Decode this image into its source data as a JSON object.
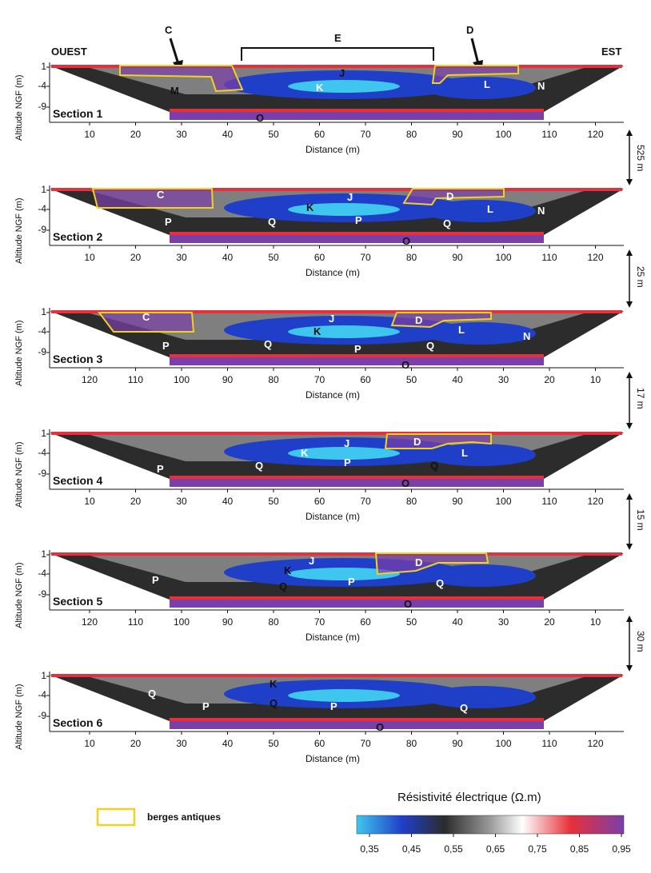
{
  "header": {
    "west": "OUEST",
    "east": "EST",
    "arrow_c": "C",
    "arrow_d": "D",
    "bracket_e": "E"
  },
  "axis": {
    "y_title": "Altitude NGF (m)",
    "y_ticks": [
      "1",
      "-4",
      "-9"
    ],
    "x_title": "Distance (m)"
  },
  "sections": [
    {
      "name": "Section 1",
      "x_ticks": [
        "10",
        "20",
        "30",
        "40",
        "50",
        "60",
        "70",
        "80",
        "90",
        "100",
        "110",
        "120"
      ],
      "zones": [
        {
          "t": "M",
          "c": "k"
        },
        {
          "t": "K",
          "c": "w"
        },
        {
          "t": "J",
          "c": "k"
        },
        {
          "t": "L",
          "c": "w"
        },
        {
          "t": "N",
          "c": "w"
        },
        {
          "t": "O",
          "c": "k"
        }
      ]
    },
    {
      "name": "Section 2",
      "x_ticks": [
        "10",
        "20",
        "30",
        "40",
        "50",
        "60",
        "70",
        "80",
        "90",
        "100",
        "110",
        "120"
      ],
      "zones": [
        {
          "t": "C",
          "c": "w"
        },
        {
          "t": "P",
          "c": "w"
        },
        {
          "t": "K",
          "c": "k"
        },
        {
          "t": "J",
          "c": "w"
        },
        {
          "t": "Q",
          "c": "w"
        },
        {
          "t": "P",
          "c": "w"
        },
        {
          "t": "D",
          "c": "w"
        },
        {
          "t": "Q",
          "c": "w"
        },
        {
          "t": "L",
          "c": "w"
        },
        {
          "t": "N",
          "c": "w"
        },
        {
          "t": "O",
          "c": "k"
        }
      ]
    },
    {
      "name": "Section 3",
      "x_ticks": [
        "120",
        "110",
        "100",
        "90",
        "80",
        "70",
        "60",
        "50",
        "40",
        "30",
        "20",
        "10"
      ],
      "zones": [
        {
          "t": "C",
          "c": "w"
        },
        {
          "t": "P",
          "c": "w"
        },
        {
          "t": "Q",
          "c": "w"
        },
        {
          "t": "K",
          "c": "k"
        },
        {
          "t": "J",
          "c": "w"
        },
        {
          "t": "P",
          "c": "w"
        },
        {
          "t": "D",
          "c": "w"
        },
        {
          "t": "L",
          "c": "w"
        },
        {
          "t": "Q",
          "c": "w"
        },
        {
          "t": "N",
          "c": "w"
        },
        {
          "t": "O",
          "c": "k"
        }
      ]
    },
    {
      "name": "Section 4",
      "x_ticks": [
        "10",
        "20",
        "30",
        "40",
        "50",
        "60",
        "70",
        "80",
        "90",
        "100",
        "110",
        "120"
      ],
      "zones": [
        {
          "t": "P",
          "c": "w"
        },
        {
          "t": "Q",
          "c": "w"
        },
        {
          "t": "K",
          "c": "w"
        },
        {
          "t": "J",
          "c": "w"
        },
        {
          "t": "P",
          "c": "w"
        },
        {
          "t": "D",
          "c": "w"
        },
        {
          "t": "L",
          "c": "w"
        },
        {
          "t": "Q",
          "c": "k"
        },
        {
          "t": "O",
          "c": "k"
        }
      ]
    },
    {
      "name": "Section 5",
      "x_ticks": [
        "120",
        "110",
        "100",
        "90",
        "80",
        "70",
        "60",
        "50",
        "40",
        "30",
        "20",
        "10"
      ],
      "zones": [
        {
          "t": "P",
          "c": "w"
        },
        {
          "t": "K",
          "c": "k"
        },
        {
          "t": "J",
          "c": "w"
        },
        {
          "t": "Q",
          "c": "k"
        },
        {
          "t": "P",
          "c": "w"
        },
        {
          "t": "D",
          "c": "w"
        },
        {
          "t": "Q",
          "c": "w"
        },
        {
          "t": "O",
          "c": "k"
        }
      ]
    },
    {
      "name": "Section 6",
      "x_ticks": [
        "10",
        "20",
        "30",
        "40",
        "50",
        "60",
        "70",
        "80",
        "90",
        "100",
        "110",
        "120"
      ],
      "zones": [
        {
          "t": "Q",
          "c": "w"
        },
        {
          "t": "P",
          "c": "w"
        },
        {
          "t": "K",
          "c": "k"
        },
        {
          "t": "Q",
          "c": "k"
        },
        {
          "t": "P",
          "c": "w"
        },
        {
          "t": "Q",
          "c": "w"
        },
        {
          "t": "O",
          "c": "k"
        }
      ]
    }
  ],
  "gaps": [
    "525 m",
    "25 m",
    "17 m",
    "15 m",
    "30 m"
  ],
  "legend": {
    "berges": "berges antiques",
    "colorbar_title": "Résistivité électrique (Ω.m)",
    "colorbar_ticks": [
      "0,35",
      "0,45",
      "0,55",
      "0,65",
      "0,75",
      "0,85",
      "0,95"
    ],
    "colors": {
      "cyan": "#3fc6ee",
      "blue": "#1f3fc8",
      "dark": "#2c2c2c",
      "gray": "#9a9a9a",
      "white": "#ffffff",
      "red": "#e8303a",
      "purple": "#7a3fa8",
      "outline": "#f2d21f"
    }
  }
}
